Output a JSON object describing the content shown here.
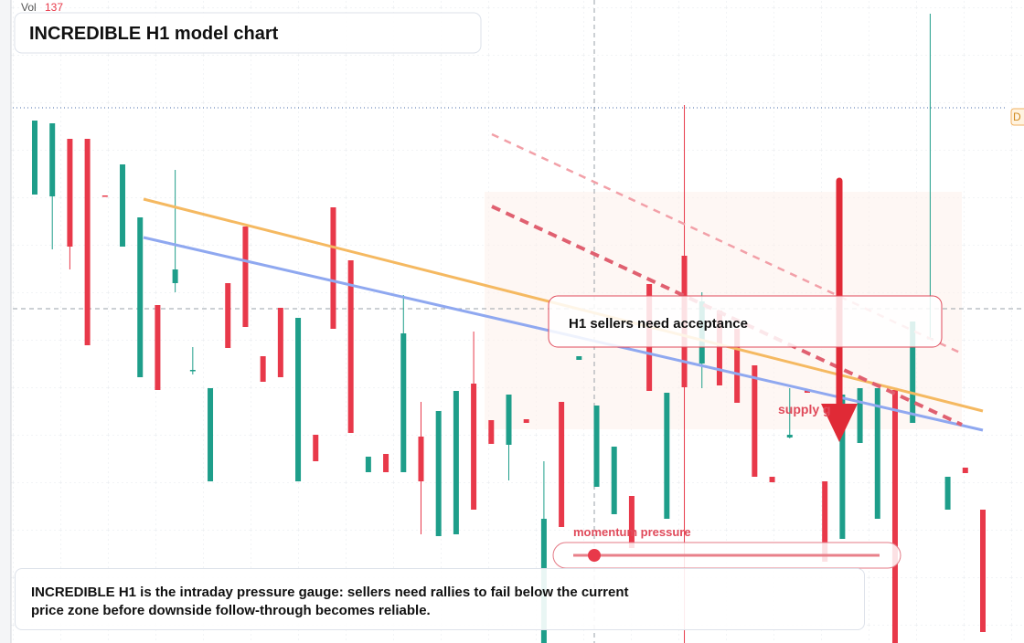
{
  "header": {
    "vol_label": "Vol",
    "vol_value": 137,
    "title": "INCREDIBLE H1 model chart",
    "edge_label": "D"
  },
  "chart_data": {
    "type": "candlestick",
    "ylim": [
      0,
      704
    ],
    "up_color": "#1e9e8a",
    "down_color": "#e8394a",
    "open": [
      491,
      489,
      552,
      552,
      490,
      434,
      291,
      370,
      394,
      298,
      177,
      394,
      456,
      314,
      367,
      177,
      228,
      477,
      419,
      187,
      207,
      187,
      226,
      117,
      119,
      284,
      244,
      217,
      245,
      0,
      264,
      310,
      171,
      141,
      161,
      393,
      136,
      424,
      306,
      364,
      344,
      304,
      182,
      225,
      278,
      177,
      114,
      219,
      136,
      277,
      241,
      333,
      146,
      192,
      146
    ],
    "high": [
      572,
      569,
      552,
      552,
      490,
      524,
      466,
      370,
      518,
      324,
      279,
      394,
      456,
      314,
      367,
      356,
      228,
      477,
      419,
      204,
      207,
      381,
      264,
      254,
      276,
      341,
      244,
      272,
      245,
      199,
      264,
      314,
      260,
      215,
      161,
      393,
      274,
      589,
      384,
      364,
      344,
      304,
      182,
      279,
      278,
      177,
      272,
      279,
      279,
      277,
      352,
      689,
      182,
      192,
      146
    ],
    "low": [
      491,
      431,
      409,
      326,
      489,
      434,
      291,
      277,
      384,
      294,
      177,
      323,
      346,
      286,
      291,
      177,
      199,
      344,
      230,
      187,
      187,
      187,
      119,
      117,
      119,
      146,
      218,
      178,
      241,
      0,
      127,
      310,
      171,
      141,
      104,
      276,
      136,
      0,
      279,
      282,
      263,
      182,
      176,
      224,
      274,
      89,
      114,
      219,
      136,
      0,
      241,
      332,
      146,
      186,
      12
    ],
    "close": [
      572,
      569,
      434,
      326,
      489,
      524,
      466,
      277,
      409,
      299,
      279,
      323,
      346,
      286,
      291,
      356,
      199,
      344,
      230,
      204,
      187,
      339,
      177,
      254,
      276,
      146,
      218,
      272,
      241,
      136,
      127,
      314,
      260,
      215,
      104,
      276,
      274,
      280,
      374,
      282,
      263,
      182,
      176,
      228,
      274,
      89,
      272,
      279,
      279,
      0,
      352,
      334,
      182,
      186,
      12
    ]
  },
  "annotations": {
    "acceptance": "H1 sellers need acceptance",
    "supply": "supply g",
    "momentum": "momentum pressure",
    "summary": "INCREDIBLE H1 is the intraday pressure gauge: sellers need rallies to fail below the current price zone before downside follow-through becomes reliable."
  }
}
